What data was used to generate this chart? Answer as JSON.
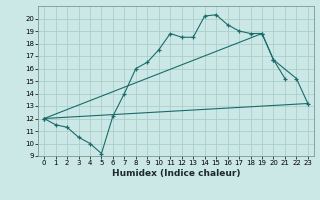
{
  "xlabel": "Humidex (Indice chaleur)",
  "bg_color": "#cce8e6",
  "grid_color": "#aacfcd",
  "line_color": "#1a6b6a",
  "xlim": [
    -0.5,
    23.5
  ],
  "ylim": [
    9,
    21
  ],
  "xticks": [
    0,
    1,
    2,
    3,
    4,
    5,
    6,
    7,
    8,
    9,
    10,
    11,
    12,
    13,
    14,
    15,
    16,
    17,
    18,
    19,
    20,
    21,
    22,
    23
  ],
  "yticks": [
    9,
    10,
    11,
    12,
    13,
    14,
    15,
    16,
    17,
    18,
    19,
    20
  ],
  "line1_x": [
    0,
    1,
    2,
    3,
    4,
    5,
    6,
    7,
    8,
    9,
    10,
    11,
    12,
    13,
    14,
    15,
    16,
    17,
    18,
    19,
    20,
    21
  ],
  "line1_y": [
    12.0,
    11.5,
    11.3,
    10.5,
    10.0,
    9.2,
    12.2,
    14.0,
    16.0,
    16.5,
    17.5,
    18.8,
    18.5,
    18.5,
    20.2,
    20.3,
    19.5,
    19.0,
    18.8,
    18.8,
    16.7,
    15.2
  ],
  "line2_x": [
    0,
    19,
    20,
    22,
    23
  ],
  "line2_y": [
    12.0,
    18.8,
    16.7,
    15.2,
    13.2
  ],
  "line3_x": [
    0,
    23
  ],
  "line3_y": [
    12.0,
    13.2
  ],
  "xlabel_fontsize": 6.5,
  "tick_fontsize": 5.0
}
